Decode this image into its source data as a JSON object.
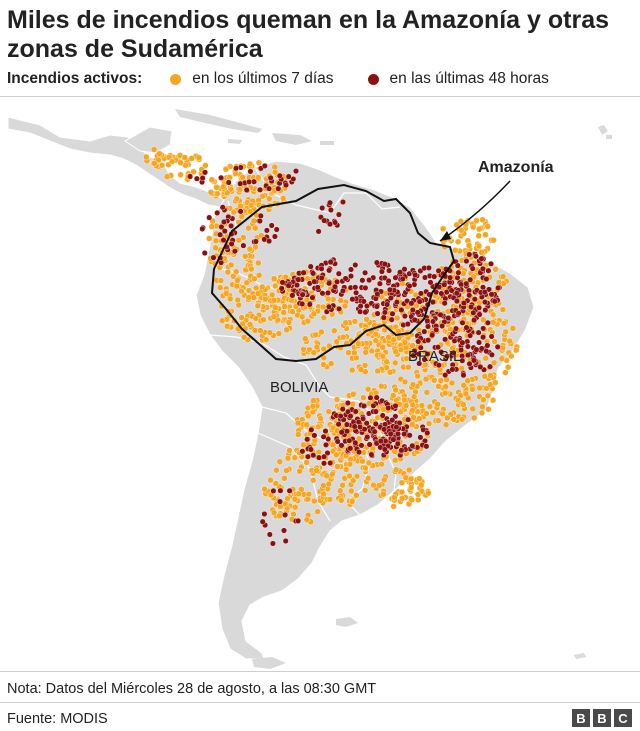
{
  "title": "Miles de incendios queman en la Amazonía y otras zonas de Sudamérica",
  "legend": {
    "label": "Incendios activos:",
    "items": [
      {
        "label": "en los últimos 7 días",
        "color": "#f5a623"
      },
      {
        "label": "en las últimas 48 horas",
        "color": "#8b1111"
      }
    ]
  },
  "map": {
    "land_color": "#d9d9d9",
    "border_color": "#ffffff",
    "amazon_outline_color": "#111111",
    "labels": {
      "amazon": "Amazonía",
      "brasil": "BRASIL",
      "bolivia": "BOLIVIA"
    }
  },
  "note": "Nota: Datos del Miércoles 28 de agosto, a las 08:30 GMT",
  "source": "Fuente: MODIS",
  "logo_letters": [
    "B",
    "B",
    "C"
  ]
}
